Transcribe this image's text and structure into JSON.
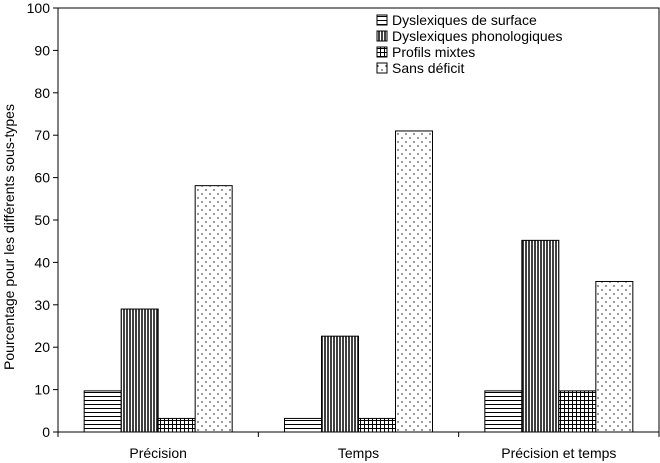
{
  "chart_data": {
    "type": "bar",
    "title": "",
    "xlabel": "",
    "ylabel": "Pourcentage pour les différents sous-types",
    "ylim": [
      0,
      100
    ],
    "yticks": [
      0,
      10,
      20,
      30,
      40,
      50,
      60,
      70,
      80,
      90,
      100
    ],
    "categories": [
      "Précision",
      "Temps",
      "Précision et temps"
    ],
    "grid": false,
    "legend_position": "top-right",
    "series": [
      {
        "name": "Dyslexiques de surface",
        "pattern": "horizontal-lines",
        "values": [
          9.7,
          3.2,
          9.7
        ]
      },
      {
        "name": "Dyslexiques phonologiques",
        "pattern": "vertical-lines",
        "values": [
          29.0,
          22.6,
          45.2
        ]
      },
      {
        "name": "Profils mixtes",
        "pattern": "grid",
        "values": [
          3.2,
          3.2,
          9.7
        ]
      },
      {
        "name": "Sans déficit",
        "pattern": "dots",
        "values": [
          58.1,
          71.0,
          35.5
        ]
      }
    ]
  }
}
